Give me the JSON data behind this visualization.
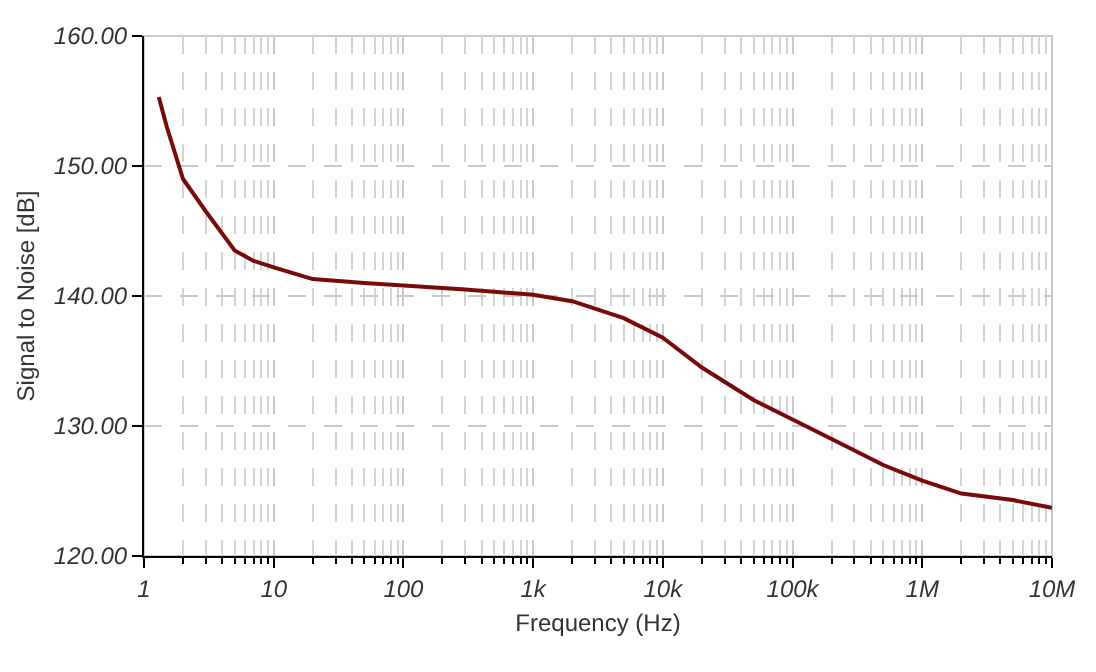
{
  "chart_data": {
    "type": "line",
    "xlabel": "Frequency (Hz)",
    "ylabel": "Signal to Noise [dB]",
    "log": "x",
    "x": [
      1.3,
      1.5,
      2,
      3,
      5,
      7,
      10,
      20,
      50,
      100,
      300,
      1000,
      2000,
      5000,
      10000,
      20000,
      50000,
      100000,
      200000,
      500000,
      1000000,
      2000000,
      5000000,
      10000000
    ],
    "series": [
      {
        "color": "#7a0a0a",
        "values": [
          155.3,
          153,
          149,
          146.5,
          143.5,
          142.7,
          142.2,
          141.3,
          141,
          140.8,
          140.5,
          140.1,
          139.6,
          138.3,
          136.8,
          134.5,
          132,
          130.5,
          129,
          127,
          125.8,
          124.8,
          124.3,
          123.7
        ]
      }
    ],
    "xlim": [
      1,
      10000000
    ],
    "xticks": [
      1,
      10,
      100,
      {
        "value": 1000,
        "label": "1k"
      },
      {
        "value": 10000,
        "label": "10k"
      },
      {
        "value": 100000,
        "label": "100k"
      },
      {
        "value": 1000000,
        "label": "1M"
      },
      {
        "value": 10000000,
        "label": "10M"
      }
    ],
    "ylim": [
      120,
      160
    ],
    "yticks": [
      {
        "value": 120,
        "label": "120.00"
      },
      {
        "value": 130,
        "label": "130.00"
      },
      {
        "value": 140,
        "label": "140.00"
      },
      {
        "value": 150,
        "label": "150.00"
      },
      {
        "value": 160,
        "label": "160.00"
      }
    ],
    "grid": true,
    "marker": "none",
    "line_style": "solid"
  }
}
